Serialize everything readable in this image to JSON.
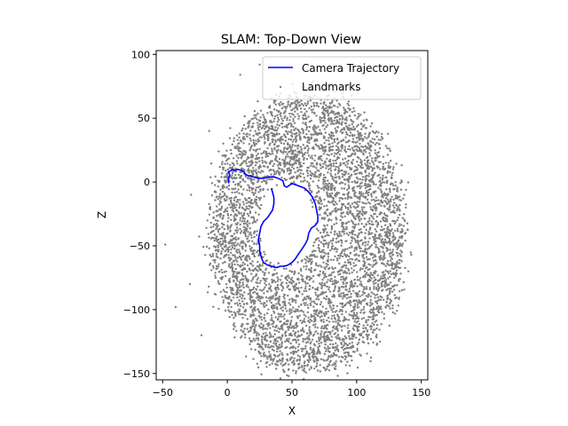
{
  "chart_data": {
    "type": "scatter",
    "title": "SLAM: Top-Down View",
    "xlabel": "X",
    "ylabel": "Z",
    "xlim": [
      -55,
      155
    ],
    "ylim": [
      -155,
      103
    ],
    "xticks": [
      -50,
      0,
      50,
      100,
      150
    ],
    "yticks": [
      100,
      50,
      0,
      -50,
      -100,
      -150
    ],
    "legend_position": "upper-right",
    "series": [
      {
        "name": "Camera Trajectory",
        "kind": "line",
        "color": "#0000ff",
        "points": [
          [
            1,
            -1
          ],
          [
            1,
            3
          ],
          [
            2,
            5
          ],
          [
            1,
            8
          ],
          [
            3,
            9
          ],
          [
            4,
            10
          ],
          [
            6,
            9
          ],
          [
            8,
            10
          ],
          [
            11,
            9
          ],
          [
            13,
            8
          ],
          [
            14,
            6
          ],
          [
            16,
            5
          ],
          [
            18,
            5
          ],
          [
            20,
            4
          ],
          [
            24,
            3
          ],
          [
            28,
            3
          ],
          [
            32,
            4
          ],
          [
            36,
            4
          ],
          [
            39,
            3
          ],
          [
            41,
            2
          ],
          [
            43,
            1
          ],
          [
            44,
            -3
          ],
          [
            46,
            -4
          ],
          [
            50,
            -1
          ],
          [
            55,
            -3
          ],
          [
            60,
            -5
          ],
          [
            63,
            -8
          ],
          [
            66,
            -12
          ],
          [
            68,
            -17
          ],
          [
            69,
            -22
          ],
          [
            70,
            -27
          ],
          [
            70,
            -31
          ],
          [
            68,
            -34
          ],
          [
            65,
            -36
          ],
          [
            63,
            -40
          ],
          [
            62,
            -45
          ],
          [
            60,
            -49
          ],
          [
            58,
            -52
          ],
          [
            56,
            -55
          ],
          [
            54,
            -58
          ],
          [
            52,
            -61
          ],
          [
            50,
            -63
          ],
          [
            47,
            -65
          ],
          [
            44,
            -66
          ],
          [
            41,
            -66
          ],
          [
            38,
            -67
          ],
          [
            34,
            -66
          ],
          [
            31,
            -65
          ],
          [
            28,
            -63
          ],
          [
            27,
            -61
          ],
          [
            26,
            -58
          ],
          [
            25,
            -54
          ],
          [
            25,
            -50
          ],
          [
            24,
            -45
          ],
          [
            25,
            -40
          ],
          [
            26,
            -35
          ],
          [
            28,
            -31
          ],
          [
            31,
            -28
          ],
          [
            33,
            -25
          ],
          [
            35,
            -22
          ],
          [
            36,
            -17
          ],
          [
            36,
            -12
          ],
          [
            35,
            -8
          ],
          [
            34,
            -5
          ]
        ]
      },
      {
        "name": "Landmarks",
        "kind": "scatter",
        "color": "#808080",
        "distribution": {
          "center": [
            62,
            -40
          ],
          "radius_x_range": [
            -15,
            140
          ],
          "radius_y_range": [
            -140,
            85
          ],
          "hole_center": [
            46,
            -33
          ],
          "hole_radius": [
            22,
            32
          ]
        }
      }
    ]
  }
}
